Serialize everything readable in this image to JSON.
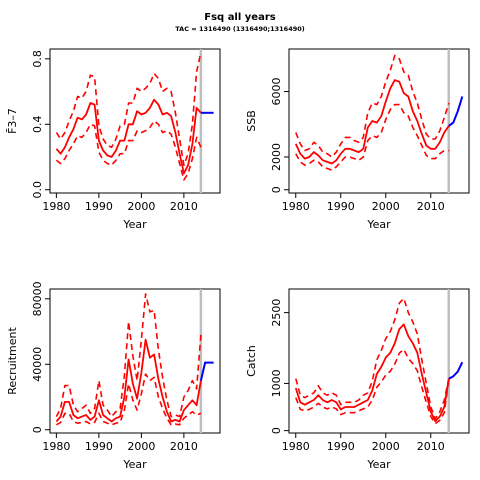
{
  "figure": {
    "title": "Fsq all years",
    "subtitle": "TAC = 1316490 (1316490;1316490)"
  },
  "colors": {
    "estimate": "#ff0000",
    "forecast": "#0000ff",
    "terminal_year_marker": "#bebebe",
    "axis": "#000000"
  },
  "chart_data": [
    {
      "id": "fbar",
      "type": "line",
      "xlabel": "Year",
      "ylabel": "F̄3–7",
      "xlim": [
        1978.5,
        2018.5
      ],
      "ylim": [
        -0.02,
        0.86
      ],
      "xticks": [
        1980,
        1990,
        2000,
        2010
      ],
      "yticks": [
        0.0,
        0.4,
        0.8
      ],
      "ytick_labels": [
        "0.0",
        "0.4",
        "0.8"
      ],
      "terminal_year": 2014,
      "x": [
        1980,
        1981,
        1982,
        1983,
        1984,
        1985,
        1986,
        1987,
        1988,
        1989,
        1990,
        1991,
        1992,
        1993,
        1994,
        1995,
        1996,
        1997,
        1998,
        1999,
        2000,
        2001,
        2002,
        2003,
        2004,
        2005,
        2006,
        2007,
        2008,
        2009,
        2010,
        2011,
        2012,
        2013,
        2014
      ],
      "series": [
        {
          "role": "estimate",
          "values": [
            0.25,
            0.22,
            0.26,
            0.32,
            0.37,
            0.44,
            0.43,
            0.46,
            0.53,
            0.52,
            0.3,
            0.24,
            0.21,
            0.2,
            0.24,
            0.3,
            0.3,
            0.4,
            0.4,
            0.48,
            0.46,
            0.47,
            0.5,
            0.55,
            0.52,
            0.46,
            0.47,
            0.45,
            0.35,
            0.22,
            0.1,
            0.15,
            0.28,
            0.5,
            0.47
          ]
        },
        {
          "role": "upper",
          "values": [
            0.35,
            0.31,
            0.35,
            0.42,
            0.48,
            0.57,
            0.56,
            0.6,
            0.7,
            0.69,
            0.39,
            0.31,
            0.27,
            0.26,
            0.31,
            0.39,
            0.4,
            0.53,
            0.53,
            0.62,
            0.6,
            0.62,
            0.65,
            0.71,
            0.68,
            0.6,
            0.62,
            0.6,
            0.47,
            0.31,
            0.15,
            0.22,
            0.4,
            0.72,
            0.84
          ]
        },
        {
          "role": "lower",
          "values": [
            0.18,
            0.16,
            0.19,
            0.24,
            0.28,
            0.33,
            0.32,
            0.35,
            0.4,
            0.39,
            0.23,
            0.18,
            0.16,
            0.15,
            0.18,
            0.22,
            0.22,
            0.3,
            0.3,
            0.36,
            0.35,
            0.36,
            0.38,
            0.42,
            0.4,
            0.35,
            0.36,
            0.34,
            0.26,
            0.16,
            0.06,
            0.1,
            0.19,
            0.32,
            0.26
          ]
        }
      ],
      "forecast": {
        "x": [
          2014,
          2015,
          2016,
          2017
        ],
        "values": [
          0.47,
          0.47,
          0.47,
          0.47
        ]
      }
    },
    {
      "id": "ssb",
      "type": "line",
      "xlabel": "Year",
      "ylabel": "SSB",
      "xlim": [
        1978.5,
        2018.5
      ],
      "ylim": [
        -200,
        8600
      ],
      "xticks": [
        1980,
        1990,
        2000,
        2010
      ],
      "yticks": [
        0,
        2000,
        6000
      ],
      "ytick_labels": [
        "0",
        "2000",
        "6000"
      ],
      "terminal_year": 2014,
      "x": [
        1980,
        1981,
        1982,
        1983,
        1984,
        1985,
        1986,
        1987,
        1988,
        1989,
        1990,
        1991,
        1992,
        1993,
        1994,
        1995,
        1996,
        1997,
        1998,
        1999,
        2000,
        2001,
        2002,
        2003,
        2004,
        2005,
        2006,
        2007,
        2008,
        2009,
        2010,
        2011,
        2012,
        2013,
        2014
      ],
      "series": [
        {
          "role": "estimate",
          "values": [
            2800,
            2200,
            1900,
            2000,
            2300,
            2100,
            1800,
            1700,
            1600,
            1800,
            2200,
            2500,
            2500,
            2400,
            2300,
            2500,
            3800,
            4200,
            4100,
            4500,
            5400,
            6200,
            6700,
            6600,
            5900,
            5700,
            4800,
            4200,
            3400,
            2700,
            2500,
            2500,
            2900,
            3500,
            3900
          ]
        },
        {
          "role": "upper",
          "values": [
            3500,
            2800,
            2400,
            2500,
            2900,
            2700,
            2300,
            2200,
            2000,
            2300,
            2800,
            3200,
            3200,
            3000,
            2900,
            3200,
            4700,
            5300,
            5200,
            5700,
            6600,
            7300,
            8200,
            8000,
            7200,
            7000,
            6000,
            5300,
            4300,
            3400,
            3100,
            3100,
            3600,
            4400,
            5300
          ]
        },
        {
          "role": "lower",
          "values": [
            2200,
            1700,
            1500,
            1600,
            1800,
            1700,
            1400,
            1300,
            1200,
            1400,
            1700,
            2000,
            2000,
            1900,
            1800,
            2000,
            3000,
            3300,
            3200,
            3500,
            4300,
            4900,
            5200,
            5200,
            4700,
            4500,
            3800,
            3300,
            2700,
            2100,
            1900,
            1900,
            2200,
            2400,
            2400
          ]
        }
      ],
      "forecast": {
        "x": [
          2014,
          2015,
          2016,
          2017
        ],
        "values": [
          3900,
          4100,
          4800,
          5700
        ]
      }
    },
    {
      "id": "recruitment",
      "type": "line",
      "xlabel": "Year",
      "ylabel": "Recruitment",
      "xlim": [
        1978.5,
        2018.5
      ],
      "ylim": [
        -2000,
        86000
      ],
      "xticks": [
        1980,
        1990,
        2000,
        2010
      ],
      "yticks": [
        0,
        40000,
        80000
      ],
      "ytick_labels": [
        "0",
        "40000",
        "80000"
      ],
      "terminal_year": 2014,
      "x": [
        1980,
        1981,
        1982,
        1983,
        1984,
        1985,
        1986,
        1987,
        1988,
        1989,
        1990,
        1991,
        1992,
        1993,
        1994,
        1995,
        1996,
        1997,
        1998,
        1999,
        2000,
        2001,
        2002,
        2003,
        2004,
        2005,
        2006,
        2007,
        2008,
        2009,
        2010,
        2011,
        2012,
        2013,
        2014
      ],
      "series": [
        {
          "role": "estimate",
          "values": [
            5000,
            8000,
            17000,
            17000,
            9000,
            7000,
            8000,
            9000,
            6000,
            8000,
            18000,
            9000,
            7000,
            5000,
            7000,
            8000,
            20000,
            43000,
            28000,
            19000,
            35000,
            55000,
            44000,
            46000,
            31000,
            20000,
            11000,
            5000,
            6000,
            5000,
            12000,
            15000,
            18000,
            15000,
            30000
          ]
        },
        {
          "role": "upper",
          "values": [
            8000,
            13000,
            27000,
            27000,
            15000,
            11000,
            13000,
            15000,
            10000,
            13000,
            30000,
            15000,
            12000,
            8000,
            11000,
            13000,
            33000,
            66000,
            45000,
            30000,
            55000,
            83000,
            72000,
            73000,
            49000,
            32000,
            18000,
            8000,
            9000,
            8000,
            20000,
            24000,
            30000,
            25000,
            58000
          ]
        },
        {
          "role": "lower",
          "values": [
            3000,
            4500,
            10000,
            10000,
            5000,
            4000,
            4500,
            5000,
            3500,
            4500,
            10000,
            5000,
            4000,
            3000,
            4000,
            4500,
            12000,
            28000,
            18000,
            12000,
            22000,
            34000,
            30000,
            32000,
            20000,
            13000,
            7000,
            3000,
            3500,
            3000,
            7000,
            9000,
            11000,
            9000,
            10000
          ]
        }
      ],
      "forecast": {
        "x": [
          2014,
          2015,
          2016,
          2017
        ],
        "values": [
          30000,
          41000,
          41000,
          41000
        ]
      }
    },
    {
      "id": "catch",
      "type": "line",
      "xlabel": "Year",
      "ylabel": "Catch",
      "xlim": [
        1978.5,
        2018.5
      ],
      "ylim": [
        -50,
        3000
      ],
      "xticks": [
        1980,
        1990,
        2000,
        2010
      ],
      "yticks": [
        0,
        1000,
        2500
      ],
      "ytick_labels": [
        "0",
        "1000",
        "2500"
      ],
      "terminal_year": 2014,
      "x": [
        1980,
        1981,
        1982,
        1983,
        1984,
        1985,
        1986,
        1987,
        1988,
        1989,
        1990,
        1991,
        1992,
        1993,
        1994,
        1995,
        1996,
        1997,
        1998,
        1999,
        2000,
        2001,
        2002,
        2003,
        2004,
        2005,
        2006,
        2007,
        2008,
        2009,
        2010,
        2011,
        2012,
        2013,
        2014
      ],
      "series": [
        {
          "role": "estimate",
          "values": [
            900,
            600,
            550,
            600,
            650,
            750,
            650,
            600,
            650,
            600,
            450,
            500,
            500,
            500,
            550,
            600,
            650,
            850,
            1200,
            1350,
            1550,
            1650,
            1850,
            2150,
            2250,
            2000,
            1850,
            1650,
            1200,
            800,
            400,
            200,
            300,
            500,
            1100
          ]
        },
        {
          "role": "upper",
          "values": [
            1100,
            750,
            700,
            750,
            800,
            950,
            800,
            750,
            800,
            750,
            550,
            600,
            600,
            600,
            650,
            750,
            800,
            1050,
            1500,
            1700,
            1950,
            2100,
            2350,
            2700,
            2800,
            2500,
            2300,
            2050,
            1500,
            1000,
            500,
            250,
            400,
            650,
            1100
          ]
        },
        {
          "role": "lower",
          "values": [
            700,
            450,
            420,
            450,
            500,
            580,
            500,
            460,
            500,
            460,
            340,
            380,
            380,
            380,
            420,
            460,
            500,
            650,
            920,
            1030,
            1180,
            1260,
            1410,
            1640,
            1720,
            1530,
            1420,
            1270,
            920,
            600,
            300,
            150,
            220,
            380,
            1100
          ]
        }
      ],
      "forecast": {
        "x": [
          2014,
          2015,
          2016,
          2017
        ],
        "values": [
          1100,
          1150,
          1250,
          1450
        ]
      }
    }
  ]
}
